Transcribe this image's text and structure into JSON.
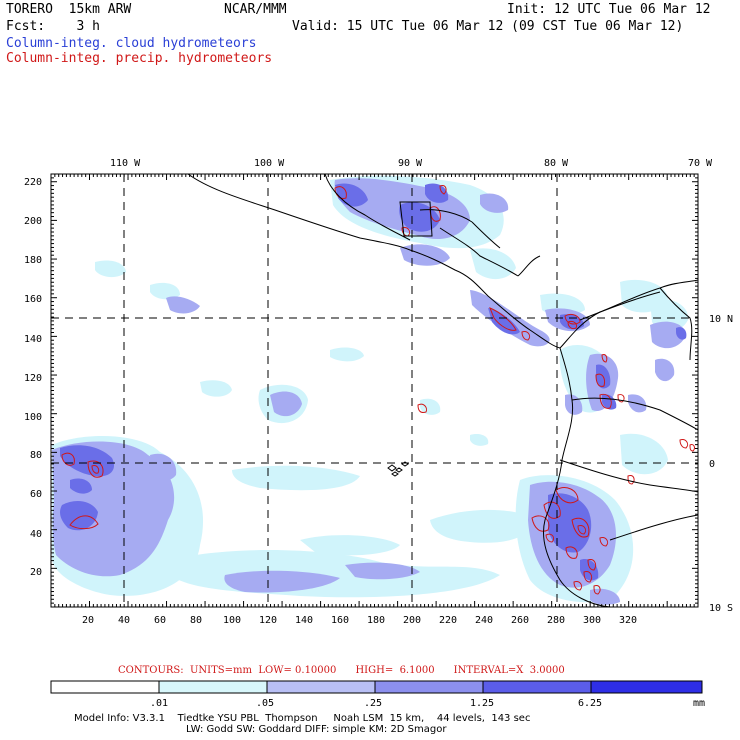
{
  "header": {
    "model": "TORERO  15km ARW",
    "center": "NCAR/MMM",
    "init": "Init: 12 UTC Tue 06 Mar 12",
    "fcst": "Fcst:    3 h",
    "valid": "Valid: 15 UTC Tue 06 Mar 12 (09 CST Tue 06 Mar 12)",
    "field1": "Column-integ. cloud hydrometeors",
    "field2": "Column-integ. precip. hydrometeors"
  },
  "map": {
    "lon_labels": [
      "110 W",
      "100 W",
      "90 W",
      "80 W",
      "70 W"
    ],
    "lat_labels": [
      "10 N",
      "0",
      "10 S"
    ],
    "x_ticks": [
      "20",
      "40",
      "60",
      "80",
      "100",
      "120",
      "140",
      "160",
      "180",
      "200",
      "220",
      "240",
      "260",
      "280",
      "300",
      "320"
    ],
    "y_ticks": [
      "20",
      "40",
      "60",
      "80",
      "100",
      "120",
      "140",
      "160",
      "180",
      "200",
      "220"
    ],
    "colors": {
      "cloud_light": "#d0f4fb",
      "cloud_mid": "#a6abf2",
      "cloud_dark": "#6a6ee8",
      "precip_contour": "#d01818",
      "land_outline": "#000000"
    }
  },
  "contours": {
    "text": "CONTOURS:  UNITS=mm  LOW= 0.10000      HIGH=  6.1000      INTERVAL=X  3.0000"
  },
  "colorbar": {
    "labels": [
      ".01",
      ".05",
      ".25",
      "1.25",
      "6.25"
    ],
    "units": "mm",
    "colors": [
      "#ffffff",
      "#d8f7fb",
      "#b9c0f5",
      "#8c90ee",
      "#5b5de9",
      "#2e2ee6"
    ]
  },
  "footer": {
    "line1": "Model Info: V3.3.1    Tiedtke YSU PBL  Thompson     Noah LSM  15 km,    44 levels,  143 sec",
    "line2": "LW: Godd SW: Goddard DIFF: simple KM: 2D Smagor"
  }
}
